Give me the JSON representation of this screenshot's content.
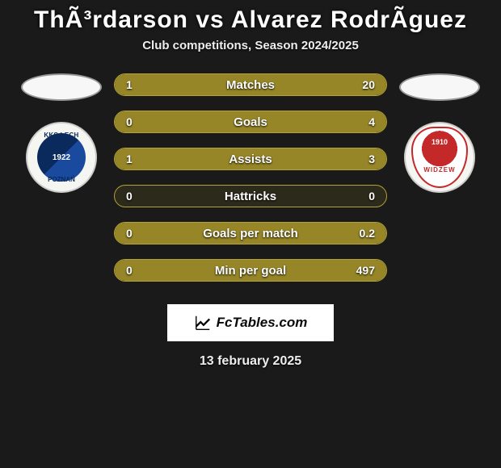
{
  "title": "ThÃ³rdarson vs Alvarez RodrÃ­guez",
  "subtitle": "Club competitions, Season 2024/2025",
  "date": "13 february 2025",
  "footer_brand": "FcTables.com",
  "left_badge": {
    "top": "KKS LECH",
    "mid": "1922",
    "bottom": "POZNAŃ"
  },
  "right_badge": {
    "year": "1910",
    "name": "WIDZEW"
  },
  "bars": [
    {
      "label": "Matches",
      "left": "1",
      "right": "20",
      "left_pct": 5,
      "right_pct": 95
    },
    {
      "label": "Goals",
      "left": "0",
      "right": "4",
      "left_pct": 0,
      "right_pct": 100
    },
    {
      "label": "Assists",
      "left": "1",
      "right": "3",
      "left_pct": 25,
      "right_pct": 75
    },
    {
      "label": "Hattricks",
      "left": "0",
      "right": "0",
      "left_pct": 0,
      "right_pct": 0
    },
    {
      "label": "Goals per match",
      "left": "0",
      "right": "0.2",
      "left_pct": 0,
      "right_pct": 100
    },
    {
      "label": "Min per goal",
      "left": "0",
      "right": "497",
      "left_pct": 0,
      "right_pct": 100,
      "full": true
    }
  ],
  "colors": {
    "bar_border": "#b4a332",
    "bar_fill": "#968627",
    "background": "#1a1a1a"
  }
}
